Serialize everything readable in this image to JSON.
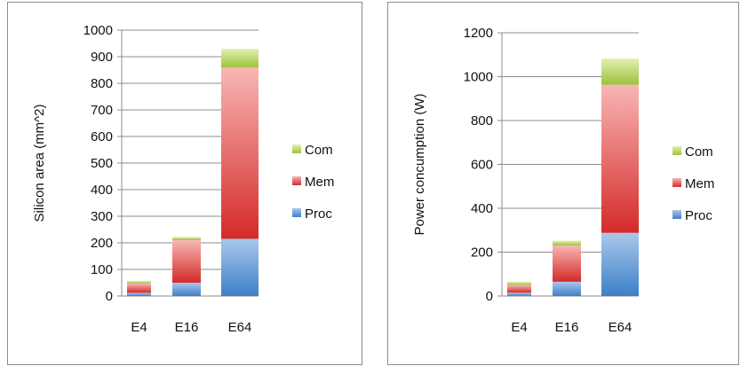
{
  "colors": {
    "Proc": {
      "top": "#a9c8ea",
      "bottom": "#3d7fc8"
    },
    "Mem": {
      "top": "#f8b6b4",
      "bottom": "#d42a28"
    },
    "Com": {
      "top": "#e3f0b4",
      "bottom": "#9cc23c"
    }
  },
  "chart_data": [
    {
      "type": "bar",
      "stacked": true,
      "categories": [
        "E4",
        "E16",
        "E64"
      ],
      "series": [
        {
          "name": "Proc",
          "values": [
            12,
            50,
            215
          ]
        },
        {
          "name": "Mem",
          "values": [
            35,
            160,
            645
          ]
        },
        {
          "name": "Com",
          "values": [
            10,
            12,
            70
          ]
        }
      ],
      "ylabel": "Silicon area (mm^2)",
      "ylim": [
        0,
        1000
      ],
      "yticks": [
        0,
        100,
        200,
        300,
        400,
        500,
        600,
        700,
        800,
        900,
        1000
      ],
      "grid": true,
      "legend": "right"
    },
    {
      "type": "bar",
      "stacked": true,
      "categories": [
        "E4",
        "E16",
        "E64"
      ],
      "series": [
        {
          "name": "Proc",
          "values": [
            15,
            65,
            288
          ]
        },
        {
          "name": "Mem",
          "values": [
            35,
            165,
            675
          ]
        },
        {
          "name": "Com",
          "values": [
            15,
            22,
            120
          ]
        }
      ],
      "ylabel": "Power concumption (W)",
      "ylim": [
        0,
        1200
      ],
      "yticks": [
        0,
        200,
        400,
        600,
        800,
        1000,
        1200
      ],
      "grid": true,
      "legend": "right"
    }
  ]
}
